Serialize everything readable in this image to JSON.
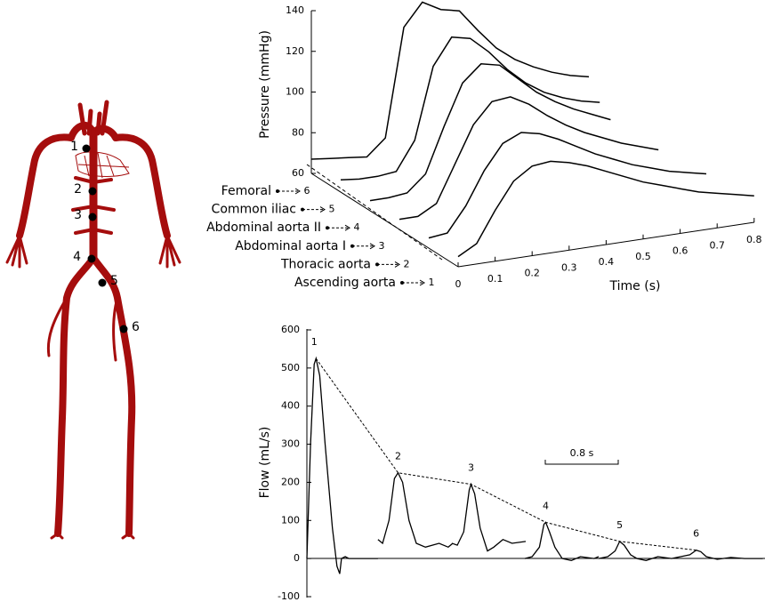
{
  "diagram": {
    "points": [
      "1",
      "2",
      "3",
      "4",
      "5",
      "6"
    ]
  },
  "chart_data": [
    {
      "type": "waterfall",
      "ylabel": "Pressure (mmHg)",
      "xlabel": "Time (s)",
      "x": [
        0,
        0.05,
        0.1,
        0.15,
        0.2,
        0.25,
        0.3,
        0.35,
        0.4,
        0.45,
        0.5,
        0.55,
        0.6,
        0.65,
        0.7,
        0.75,
        0.8
      ],
      "xlim": [
        0,
        0.8
      ],
      "xticks": [
        0,
        0.1,
        0.2,
        0.3,
        0.4,
        0.5,
        0.6,
        0.7,
        0.8
      ],
      "ylim": [
        60,
        140
      ],
      "yticks": [
        60,
        80,
        100,
        120,
        140
      ],
      "series": [
        {
          "name": "Ascending aorta",
          "site": "1",
          "color": "#000000",
          "values": [
            65,
            70,
            85,
            98,
            104,
            105,
            103,
            100,
            96,
            92,
            88,
            85,
            82,
            79,
            77,
            75,
            73
          ]
        },
        {
          "name": "Thoracic aorta",
          "site": "2",
          "color": "#000000",
          "values": [
            65,
            66,
            78,
            94,
            106,
            110,
            108,
            104,
            99,
            94,
            90,
            86,
            83,
            80,
            78,
            76,
            null
          ]
        },
        {
          "name": "Abdominal aorta I",
          "site": "3",
          "color": "#000000",
          "values": [
            65,
            65,
            70,
            88,
            106,
            116,
            117,
            112,
            105,
            99,
            94,
            90,
            86,
            83,
            80,
            null,
            null
          ]
        },
        {
          "name": "Abdominal aorta II",
          "site": "4",
          "color": "#000000",
          "values": [
            65,
            65,
            66,
            74,
            96,
            116,
            124,
            122,
            114,
            106,
            100,
            95,
            91,
            87,
            null,
            null,
            null
          ]
        },
        {
          "name": "Common iliac",
          "site": "5",
          "color": "#000000",
          "values": [
            66,
            65,
            65,
            66,
            80,
            115,
            128,
            126,
            118,
            108,
            100,
            94,
            90,
            87,
            85,
            null,
            null
          ]
        },
        {
          "name": "Femoral",
          "site": "6",
          "color": "#000000",
          "values": [
            67,
            66,
            65,
            64,
            72,
            125,
            136,
            131,
            129,
            118,
            108,
            101,
            96,
            92,
            89,
            87,
            null
          ]
        }
      ]
    },
    {
      "type": "line",
      "ylabel": "Flow (mL/s)",
      "xlim": [
        0,
        5
      ],
      "ylim": [
        -100,
        600
      ],
      "yticks": [
        -100,
        0,
        100,
        200,
        300,
        400,
        500,
        600
      ],
      "scale_bar": {
        "value": 0.8,
        "label": "0.8 s"
      },
      "annotations": [
        "1",
        "2",
        "3",
        "4",
        "5",
        "6"
      ],
      "series": [
        {
          "color": "#000000",
          "x": [
            0,
            0.04,
            0.08,
            0.1,
            0.14,
            0.2,
            0.28,
            0.33,
            0.36,
            0.38,
            0.42,
            0.46,
            0.78
          ],
          "values": [
            0,
            300,
            510,
            525,
            480,
            300,
            80,
            -20,
            -40,
            0,
            5,
            0,
            0
          ]
        },
        {
          "color": "#000000",
          "x": [
            0.78,
            0.83,
            0.9,
            0.96,
            1.0,
            1.05,
            1.12,
            1.2,
            1.3,
            1.45,
            1.55,
            1.6
          ],
          "values": [
            50,
            40,
            100,
            210,
            225,
            200,
            100,
            40,
            30,
            40,
            30,
            40
          ]
        },
        {
          "color": "#000000",
          "x": [
            1.59,
            1.65,
            1.72,
            1.78,
            1.8,
            1.84,
            1.9,
            1.98,
            2.05,
            2.15,
            2.25,
            2.4
          ],
          "values": [
            40,
            35,
            70,
            180,
            195,
            170,
            80,
            20,
            30,
            50,
            40,
            45
          ]
        },
        {
          "color": "#000000",
          "x": [
            2.39,
            2.47,
            2.55,
            2.6,
            2.62,
            2.66,
            2.72,
            2.8,
            2.9,
            3.0,
            3.15,
            3.2
          ],
          "values": [
            0,
            5,
            30,
            90,
            95,
            70,
            30,
            0,
            -5,
            5,
            0,
            5
          ]
        },
        {
          "color": "#000000",
          "x": [
            3.2,
            3.3,
            3.38,
            3.43,
            3.48,
            3.55,
            3.62,
            3.72,
            3.85,
            4.0
          ],
          "values": [
            0,
            5,
            20,
            45,
            35,
            10,
            0,
            -5,
            5,
            0
          ]
        },
        {
          "color": "#000000",
          "x": [
            4.0,
            4.1,
            4.2,
            4.27,
            4.32,
            4.38,
            4.5,
            4.65,
            4.8,
            5.0
          ],
          "values": [
            0,
            5,
            10,
            22,
            18,
            5,
            -2,
            3,
            0,
            0
          ]
        }
      ]
    }
  ]
}
